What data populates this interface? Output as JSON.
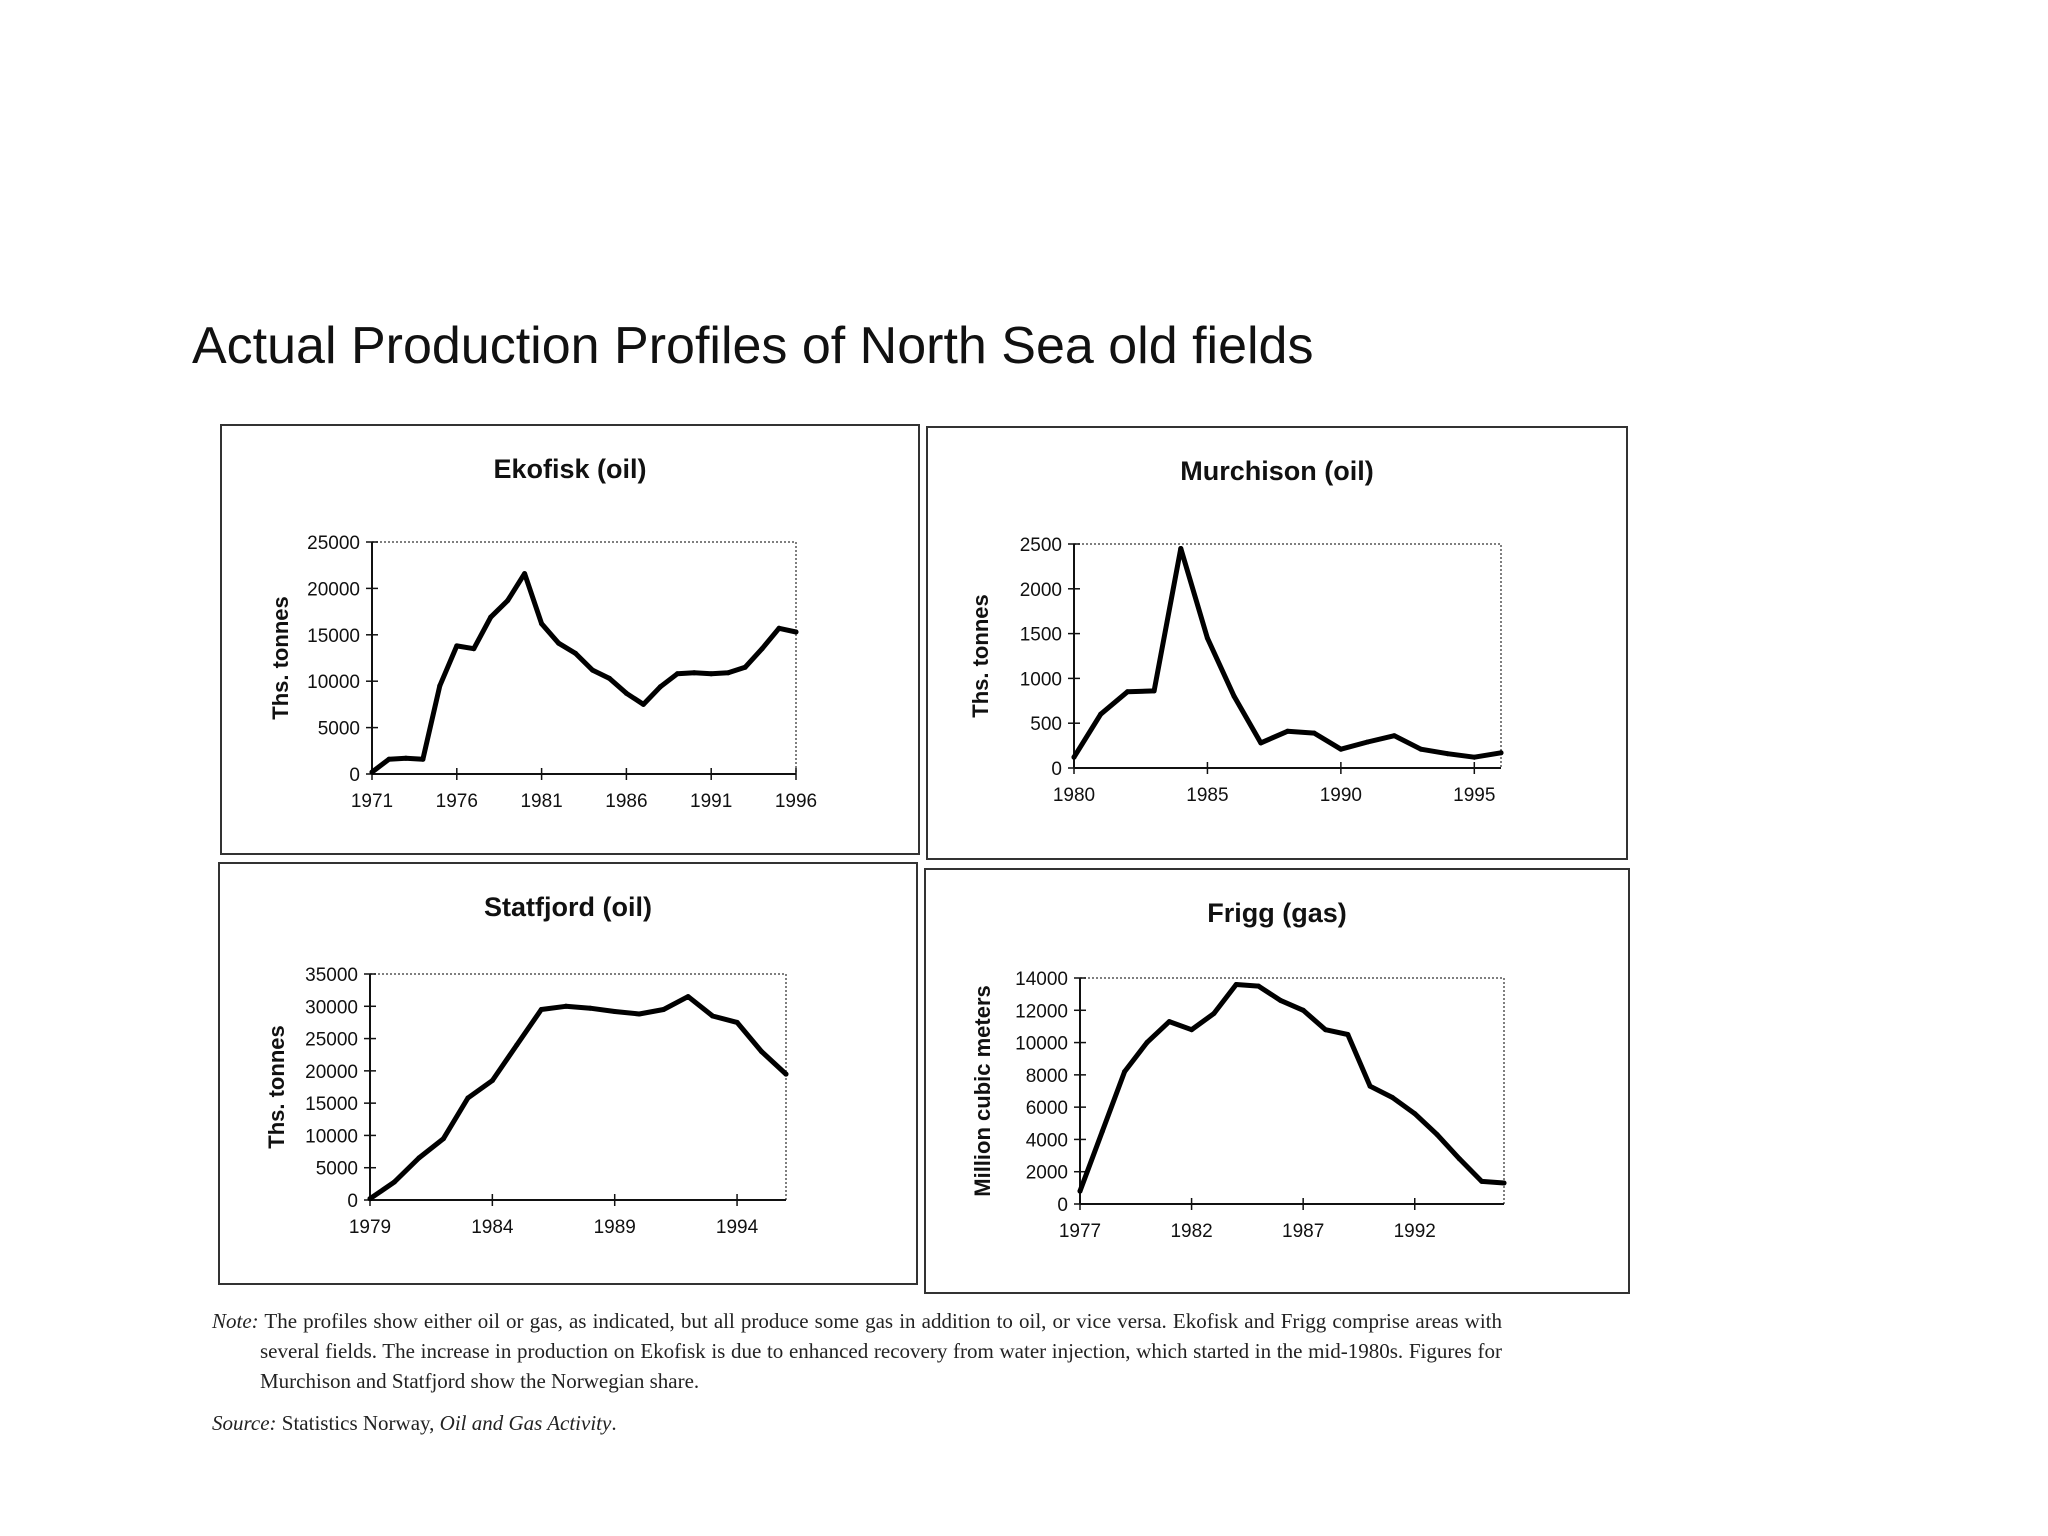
{
  "page": {
    "title": "Actual Production Profiles of North Sea old fields"
  },
  "note": {
    "label": "Note:",
    "text": "The profiles show either oil or gas, as indicated, but all produce some gas in addition to oil, or vice versa. Ekofisk and Frigg comprise areas with several fields. The increase in production on Ekofisk is due to enhanced recovery from water injection, which started in the mid-1980s. Figures for Murchison and Statfjord show the Norwegian share."
  },
  "source": {
    "label": "Source:",
    "text": "Statistics Norway,",
    "publication": "Oil and Gas Activity",
    "end": "."
  },
  "chart_data": [
    {
      "type": "line",
      "title": "Ekofisk (oil)",
      "ylabel": "Ths. tonnes",
      "xlabel": "",
      "xlim": [
        1971,
        1996
      ],
      "ylim": [
        0,
        25000
      ],
      "yticks": [
        0,
        5000,
        10000,
        15000,
        20000,
        25000
      ],
      "xticks": [
        1971,
        1976,
        1981,
        1986,
        1991,
        1996
      ],
      "grid": false,
      "series": [
        {
          "x": [
            1971,
            1972,
            1973,
            1974,
            1975,
            1976,
            1977,
            1978,
            1979,
            1980,
            1981,
            1982,
            1983,
            1984,
            1985,
            1986,
            1987,
            1988,
            1989,
            1990,
            1991,
            1992,
            1993,
            1994,
            1995,
            1996
          ],
          "y": [
            200,
            1600,
            1700,
            1600,
            9500,
            13800,
            13500,
            16900,
            18700,
            21600,
            16200,
            14100,
            13000,
            11200,
            10300,
            8700,
            7500,
            9400,
            10800,
            10900,
            10800,
            10900,
            11500,
            13500,
            15700,
            15300
          ]
        }
      ]
    },
    {
      "type": "line",
      "title": "Murchison (oil)",
      "ylabel": "Ths. tonnes",
      "xlabel": "",
      "xlim": [
        1980,
        1996
      ],
      "ylim": [
        0,
        2500
      ],
      "yticks": [
        0,
        500,
        1000,
        1500,
        2000,
        2500
      ],
      "xticks": [
        1980,
        1985,
        1990,
        1995
      ],
      "grid": false,
      "series": [
        {
          "x": [
            1980,
            1981,
            1982,
            1983,
            1984,
            1985,
            1986,
            1987,
            1988,
            1989,
            1990,
            1991,
            1992,
            1993,
            1994,
            1995,
            1996
          ],
          "y": [
            120,
            600,
            850,
            860,
            2450,
            1450,
            800,
            280,
            410,
            390,
            210,
            290,
            360,
            210,
            160,
            120,
            170
          ]
        }
      ]
    },
    {
      "type": "line",
      "title": "Statfjord (oil)",
      "ylabel": "Ths. tonnes",
      "xlabel": "",
      "xlim": [
        1979,
        1996
      ],
      "ylim": [
        0,
        35000
      ],
      "yticks": [
        0,
        5000,
        10000,
        15000,
        20000,
        25000,
        30000,
        35000
      ],
      "xticks": [
        1979,
        1984,
        1989,
        1994
      ],
      "grid": false,
      "series": [
        {
          "x": [
            1979,
            1980,
            1981,
            1982,
            1983,
            1984,
            1985,
            1986,
            1987,
            1988,
            1989,
            1990,
            1991,
            1992,
            1993,
            1994,
            1995,
            1996
          ],
          "y": [
            200,
            2800,
            6500,
            9500,
            15800,
            18500,
            24000,
            29500,
            30000,
            29700,
            29200,
            28800,
            29500,
            31500,
            28500,
            27500,
            23000,
            19500
          ]
        }
      ]
    },
    {
      "type": "line",
      "title": "Frigg (gas)",
      "ylabel": "Million cubic meters",
      "xlabel": "",
      "xlim": [
        1977,
        1996
      ],
      "ylim": [
        0,
        14000
      ],
      "yticks": [
        0,
        2000,
        4000,
        6000,
        8000,
        10000,
        12000,
        14000
      ],
      "xticks": [
        1977,
        1982,
        1987,
        1992
      ],
      "grid": false,
      "series": [
        {
          "x": [
            1977,
            1978,
            1979,
            1980,
            1981,
            1982,
            1983,
            1984,
            1985,
            1986,
            1987,
            1988,
            1989,
            1990,
            1991,
            1992,
            1993,
            1994,
            1995,
            1996
          ],
          "y": [
            800,
            4500,
            8200,
            10000,
            11300,
            10800,
            11800,
            13600,
            13500,
            12600,
            12000,
            10800,
            10500,
            7300,
            6600,
            5600,
            4300,
            2800,
            1400,
            1300
          ]
        }
      ]
    }
  ]
}
